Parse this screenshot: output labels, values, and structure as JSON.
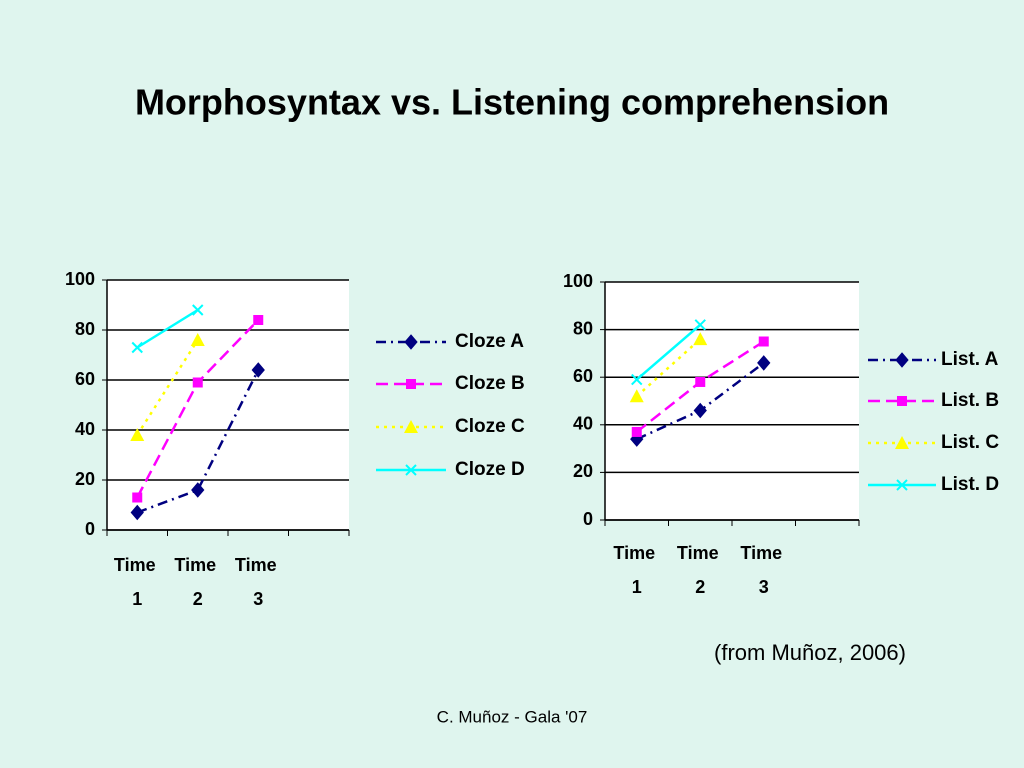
{
  "title": "Morphosyntax  vs. Listening comprehension",
  "source": "(from Muñoz, 2006)",
  "footer": "C. Muñoz - Gala '07",
  "chart_data": [
    {
      "type": "line",
      "categories": [
        "Time 1",
        "Time 2",
        "Time 3",
        null
      ],
      "ylim": [
        0,
        100
      ],
      "yticks": [
        0,
        20,
        40,
        60,
        80,
        100
      ],
      "grid": true,
      "legend": "right",
      "series": [
        {
          "name": "Cloze A",
          "color": "#000080",
          "style": "dashdot",
          "marker": "diamond",
          "values": [
            7,
            16,
            64,
            null
          ]
        },
        {
          "name": "Cloze B",
          "color": "#ff00ff",
          "style": "dashed",
          "marker": "square",
          "values": [
            13,
            59,
            84,
            null
          ]
        },
        {
          "name": "Cloze C",
          "color": "#ffff00",
          "style": "dotted",
          "marker": "triangle",
          "values": [
            38,
            76,
            null,
            null
          ]
        },
        {
          "name": "Cloze D",
          "color": "#00ffff",
          "style": "solid",
          "marker": "x",
          "values": [
            73,
            88,
            null,
            null
          ]
        }
      ]
    },
    {
      "type": "line",
      "categories": [
        "Time 1",
        "Time 2",
        "Time 3",
        null
      ],
      "ylim": [
        0,
        100
      ],
      "yticks": [
        0,
        20,
        40,
        60,
        80,
        100
      ],
      "grid": true,
      "legend": "right",
      "series": [
        {
          "name": "List. A",
          "color": "#000080",
          "style": "dashdot",
          "marker": "diamond",
          "values": [
            34,
            46,
            66,
            null
          ]
        },
        {
          "name": "List. B",
          "color": "#ff00ff",
          "style": "dashed",
          "marker": "square",
          "values": [
            37,
            58,
            75,
            null
          ]
        },
        {
          "name": "List. C",
          "color": "#ffff00",
          "style": "dotted",
          "marker": "triangle",
          "values": [
            52,
            76,
            null,
            null
          ]
        },
        {
          "name": "List. D",
          "color": "#00ffff",
          "style": "solid",
          "marker": "x",
          "values": [
            59,
            82,
            null,
            null
          ]
        }
      ]
    }
  ]
}
